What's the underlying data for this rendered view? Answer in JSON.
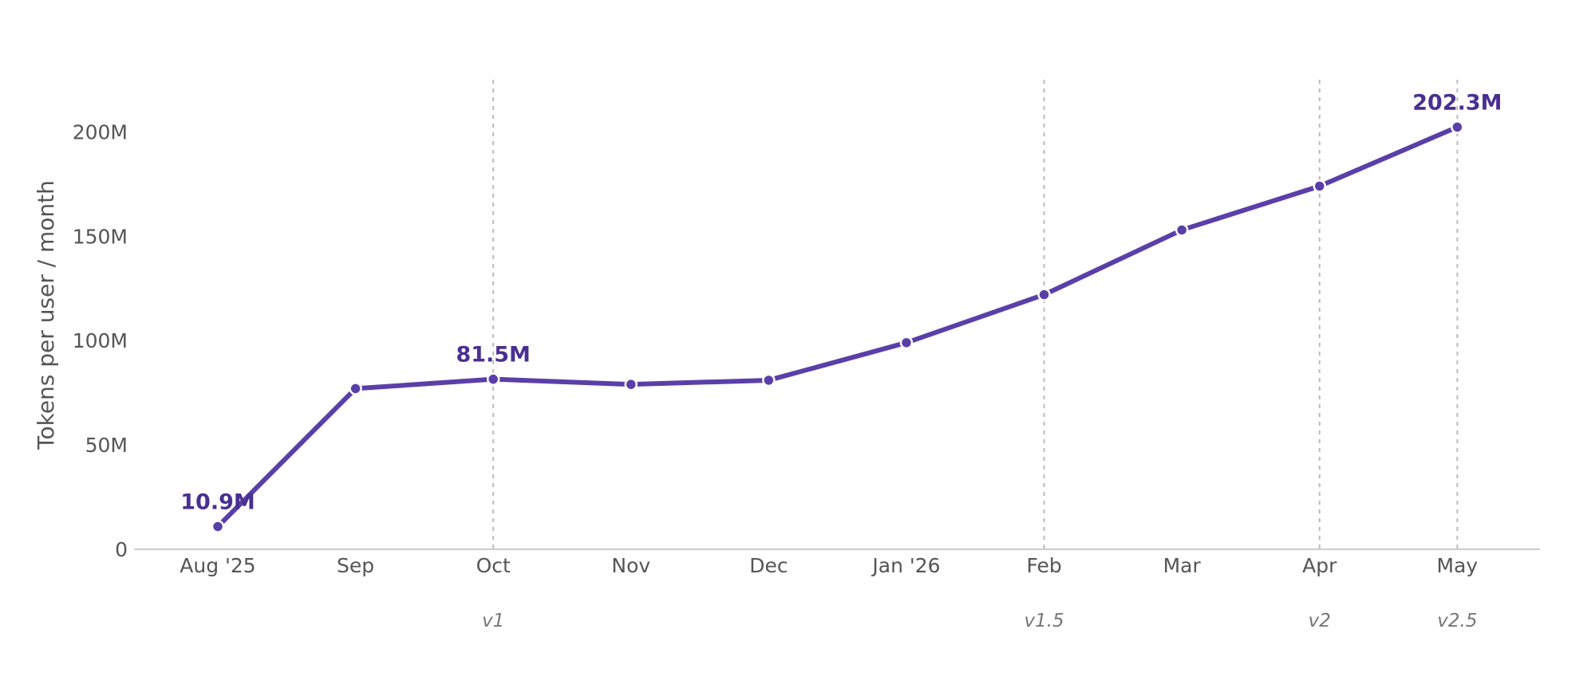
{
  "chart_data": {
    "type": "line",
    "title": "",
    "xlabel": "",
    "ylabel": "Tokens per user / month",
    "categories": [
      "Aug '25",
      "Sep",
      "Oct",
      "Nov",
      "Dec",
      "Jan '26",
      "Feb",
      "Mar",
      "Apr",
      "May"
    ],
    "series": [
      {
        "values": [
          10.9,
          77.0,
          81.5,
          79.0,
          81.0,
          99.0,
          122.0,
          153.0,
          174.0,
          202.3
        ],
        "color": "#5b3fa8"
      }
    ],
    "data_labels": [
      {
        "category": "Aug '25",
        "text": "10.9M"
      },
      {
        "category": "Oct",
        "text": "81.5M"
      },
      {
        "category": "May",
        "text": "202.3M"
      }
    ],
    "releases": [
      {
        "category": "Oct",
        "label": "v1"
      },
      {
        "category": "Feb",
        "label": "v1.5"
      },
      {
        "category": "Apr",
        "label": "v2"
      },
      {
        "category": "May",
        "label": "v2.5"
      }
    ],
    "y_ticks": [
      0,
      50,
      100,
      150,
      200
    ],
    "y_tick_labels": [
      "0",
      "50M",
      "100M",
      "150M",
      "200M"
    ],
    "ylim": [
      0,
      222
    ],
    "grid": false,
    "colors": {
      "line": "#5b3fa8",
      "label": "#4a2f91",
      "release_line": "#bbbbbb",
      "axis": "#cccccc",
      "text": "#555555",
      "release_text": "#777777"
    }
  }
}
